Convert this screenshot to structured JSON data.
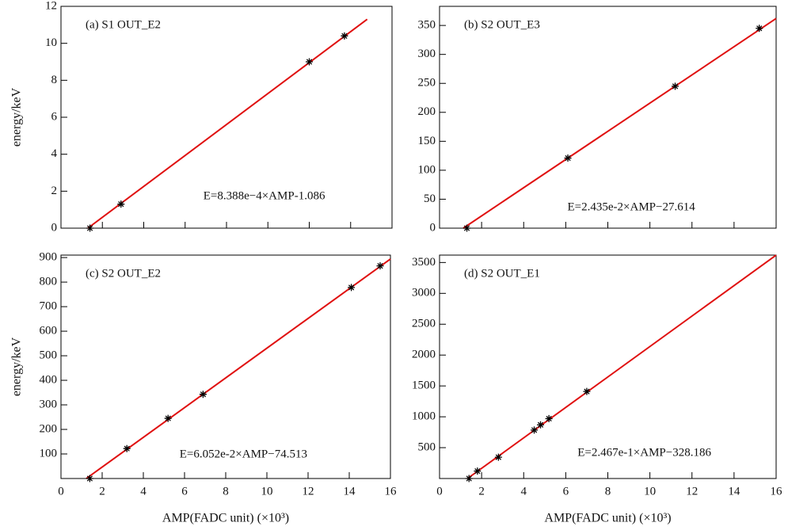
{
  "chart_data": [
    {
      "type": "scatter",
      "title": "(a) S1 OUT_E2",
      "annotation": "E=8.388e−4×AMP-1.086",
      "y_label": "energy/keV",
      "xlim": [
        0,
        16
      ],
      "ylim": [
        0,
        12
      ],
      "yticks": [
        0,
        2,
        4,
        6,
        8,
        10,
        12
      ],
      "series": [
        {
          "type": "scatter",
          "color": "#000000",
          "x": [
            1.4,
            2.9,
            12.0,
            13.7
          ],
          "values": [
            0,
            1.3,
            9.0,
            10.4
          ]
        },
        {
          "type": "line",
          "color": "#e01010",
          "x": [
            1.3,
            14.8
          ],
          "values": [
            0,
            11.3
          ]
        }
      ]
    },
    {
      "type": "scatter",
      "title": "(b) S2 OUT_E3",
      "annotation": "E=2.435e-2×AMP−27.614",
      "xlim": [
        0,
        16
      ],
      "ylim": [
        0,
        383
      ],
      "yticks": [
        0,
        50,
        100,
        150,
        200,
        250,
        300,
        350
      ],
      "series": [
        {
          "type": "scatter",
          "color": "#000000",
          "x": [
            1.3,
            6.1,
            11.2,
            15.2
          ],
          "values": [
            0,
            121,
            245,
            345
          ]
        },
        {
          "type": "line",
          "color": "#e01010",
          "x": [
            1.13,
            16
          ],
          "values": [
            0,
            362
          ]
        }
      ]
    },
    {
      "type": "scatter",
      "title": "(c) S2 OUT_E2",
      "annotation": "E=6.052e-2×AMP−74.513",
      "y_label": "energy/keV",
      "x_label": "AMP(FADC unit)  (×10³)",
      "xlim": [
        0,
        16
      ],
      "ylim": [
        0,
        910
      ],
      "xticks": [
        0,
        2,
        4,
        6,
        8,
        10,
        12,
        14,
        16
      ],
      "yticks": [
        100,
        200,
        300,
        400,
        500,
        600,
        700,
        800,
        900
      ],
      "series": [
        {
          "type": "scatter",
          "color": "#000000",
          "x": [
            1.4,
            3.2,
            5.2,
            6.9,
            14.1,
            15.5
          ],
          "values": [
            0,
            122,
            245,
            343,
            778,
            866
          ]
        },
        {
          "type": "line",
          "color": "#e01010",
          "x": [
            1.23,
            16
          ],
          "values": [
            0,
            894
          ]
        }
      ]
    },
    {
      "type": "scatter",
      "title": "(d) S2 OUT_E1",
      "annotation": "E=2.467e-1×AMP−328.186",
      "x_label": "AMP(FADC unit)  (×10³)",
      "xlim": [
        0,
        16
      ],
      "ylim": [
        0,
        3620
      ],
      "xticks": [
        0,
        2,
        4,
        6,
        8,
        10,
        12,
        14,
        16
      ],
      "yticks": [
        500,
        1000,
        1500,
        2000,
        2500,
        3000,
        3500
      ],
      "series": [
        {
          "type": "scatter",
          "color": "#000000",
          "x": [
            1.4,
            1.8,
            2.8,
            4.5,
            4.8,
            5.2,
            7.0
          ],
          "values": [
            0,
            120,
            345,
            785,
            870,
            970,
            1410
          ]
        },
        {
          "type": "line",
          "color": "#e01010",
          "x": [
            1.33,
            16
          ],
          "values": [
            0,
            3619
          ]
        }
      ]
    }
  ]
}
